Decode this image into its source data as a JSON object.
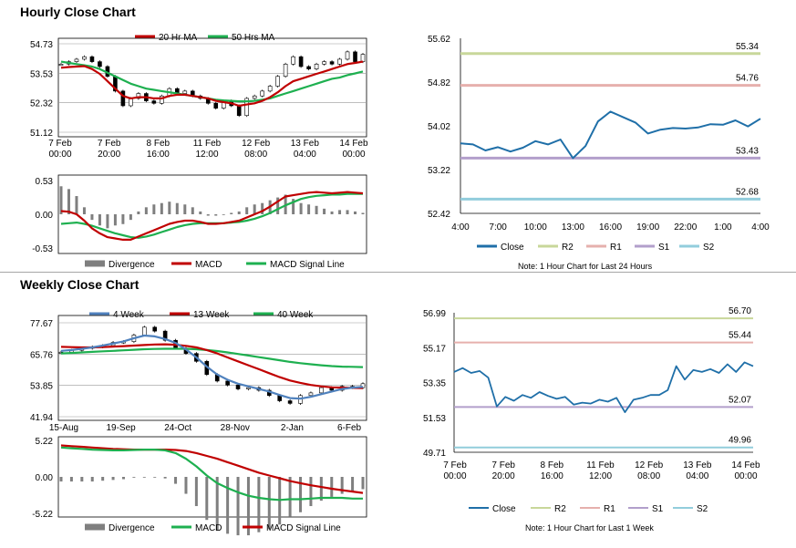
{
  "hourly_title": "Hourly Close Chart",
  "weekly_title": "Weekly Close Chart",
  "colors": {
    "ma20": "#c00000",
    "ma50": "#1eb050",
    "ma4": "#4f81bd",
    "ma13": "#c00000",
    "ma40": "#1eb050",
    "close": "#1f6fa8",
    "r2": "#c8d79a",
    "r1": "#e6b0ad",
    "s1": "#b29fcb",
    "s2": "#92cddc",
    "macd": "#c00000",
    "signal": "#1eb050",
    "divergence": "#7f7f7f"
  },
  "chart_data": [
    {
      "id": "hourly-candles",
      "type": "line",
      "legend": [
        "20 Hr MA",
        "50 Hrs MA"
      ],
      "y_ticks": [
        "54.73",
        "53.53",
        "52.32",
        "51.12"
      ],
      "ylim": [
        51.12,
        54.73
      ],
      "x_ticks": [
        "7 Feb\n00:00",
        "7 Feb\n20:00",
        "8 Feb\n16:00",
        "11 Feb\n12:00",
        "12 Feb\n08:00",
        "13 Feb\n04:00",
        "14 Feb\n00:00"
      ],
      "candles": [
        53.9,
        54.0,
        54.1,
        54.2,
        54.0,
        53.8,
        53.4,
        52.8,
        52.2,
        52.5,
        52.7,
        52.4,
        52.3,
        52.6,
        52.9,
        52.7,
        52.8,
        52.6,
        52.5,
        52.3,
        52.1,
        52.4,
        52.2,
        51.8,
        52.5,
        52.6,
        52.8,
        53.0,
        53.4,
        53.9,
        54.2,
        53.8,
        53.7,
        53.9,
        54.0,
        53.9,
        54.1,
        54.4,
        54.0,
        54.3
      ],
      "series": [
        {
          "name": "20 Hr MA",
          "values": [
            53.75,
            53.78,
            53.8,
            53.82,
            53.7,
            53.5,
            53.2,
            52.9,
            52.6,
            52.5,
            52.55,
            52.55,
            52.5,
            52.5,
            52.6,
            52.65,
            52.65,
            52.6,
            52.55,
            52.5,
            52.4,
            52.35,
            52.3,
            52.2,
            52.25,
            52.3,
            52.4,
            52.55,
            52.75,
            53.0,
            53.2,
            53.3,
            53.4,
            53.5,
            53.6,
            53.7,
            53.8,
            53.9,
            53.95,
            54.0
          ]
        },
        {
          "name": "50 Hrs MA",
          "values": [
            54.0,
            53.95,
            53.9,
            53.85,
            53.8,
            53.7,
            53.55,
            53.4,
            53.25,
            53.1,
            53.0,
            52.9,
            52.85,
            52.8,
            52.75,
            52.7,
            52.65,
            52.6,
            52.55,
            52.5,
            52.45,
            52.42,
            52.4,
            52.38,
            52.38,
            52.4,
            52.45,
            52.5,
            52.6,
            52.7,
            52.8,
            52.9,
            53.0,
            53.1,
            53.2,
            53.3,
            53.35,
            53.45,
            53.52,
            53.6
          ]
        }
      ]
    },
    {
      "id": "hourly-macd",
      "type": "line",
      "legend": [
        "Divergence",
        "MACD",
        "MACD Signal Line"
      ],
      "y_ticks": [
        "0.53",
        "0.00",
        "-0.53"
      ],
      "ylim": [
        -0.53,
        0.53
      ],
      "series": [
        {
          "name": "MACD",
          "values": [
            0.05,
            0.04,
            0.0,
            -0.1,
            -0.22,
            -0.3,
            -0.36,
            -0.38,
            -0.4,
            -0.4,
            -0.35,
            -0.3,
            -0.25,
            -0.2,
            -0.15,
            -0.12,
            -0.1,
            -0.1,
            -0.12,
            -0.15,
            -0.15,
            -0.14,
            -0.12,
            -0.1,
            -0.05,
            0.0,
            0.05,
            0.12,
            0.2,
            0.28,
            0.3,
            0.32,
            0.34,
            0.35,
            0.34,
            0.33,
            0.34,
            0.35,
            0.34,
            0.33
          ]
        },
        {
          "name": "MACD Signal Line",
          "values": [
            -0.15,
            -0.14,
            -0.13,
            -0.15,
            -0.18,
            -0.22,
            -0.26,
            -0.3,
            -0.33,
            -0.36,
            -0.37,
            -0.35,
            -0.32,
            -0.28,
            -0.24,
            -0.2,
            -0.17,
            -0.15,
            -0.14,
            -0.14,
            -0.14,
            -0.14,
            -0.13,
            -0.12,
            -0.1,
            -0.07,
            -0.03,
            0.02,
            0.08,
            0.14,
            0.19,
            0.24,
            0.27,
            0.29,
            0.3,
            0.31,
            0.31,
            0.32,
            0.32,
            0.32
          ]
        }
      ]
    },
    {
      "id": "hourly-pivot",
      "type": "line",
      "y_ticks": [
        "55.62",
        "54.82",
        "54.02",
        "53.22",
        "52.42"
      ],
      "ylim": [
        52.42,
        55.62
      ],
      "x_ticks": [
        "4:00",
        "7:00",
        "10:00",
        "13:00",
        "16:00",
        "19:00",
        "22:00",
        "1:00",
        "4:00"
      ],
      "levels": [
        {
          "name": "R2",
          "value": 55.34,
          "label": "55.34"
        },
        {
          "name": "R1",
          "value": 54.76,
          "label": "54.76"
        },
        {
          "name": "S1",
          "value": 53.43,
          "label": "53.43"
        },
        {
          "name": "S2",
          "value": 52.68,
          "label": "52.68"
        }
      ],
      "series": [
        {
          "name": "Close",
          "values": [
            53.7,
            53.68,
            53.57,
            53.63,
            53.55,
            53.62,
            53.74,
            53.68,
            53.77,
            53.43,
            53.65,
            54.1,
            54.28,
            54.18,
            54.08,
            53.88,
            53.95,
            53.98,
            53.97,
            53.99,
            54.05,
            54.04,
            54.12,
            54.01,
            54.15
          ]
        }
      ],
      "legend": [
        "Close",
        "R2",
        "R1",
        "S1",
        "S2"
      ],
      "note": "Note: 1 Hour Chart for Last 24 Hours"
    },
    {
      "id": "weekly-candles",
      "type": "line",
      "legend": [
        "4 Week",
        "13 Week",
        "40 Week"
      ],
      "y_ticks": [
        "77.67",
        "65.76",
        "53.85",
        "41.94"
      ],
      "ylim": [
        41.94,
        77.67
      ],
      "x_ticks": [
        "15-Aug",
        "19-Sep",
        "24-Oct",
        "28-Nov",
        "2-Jan",
        "6-Feb"
      ],
      "candles": [
        66.5,
        67.2,
        68.0,
        68.5,
        69.0,
        70.2,
        70.5,
        73.0,
        76.0,
        74.5,
        71.0,
        68.0,
        66.0,
        63.0,
        58.0,
        55.5,
        54.0,
        52.5,
        53.0,
        52.0,
        50.0,
        48.0,
        47.0,
        50.0,
        51.0,
        53.0,
        52.0,
        53.5,
        53.0,
        54.5
      ],
      "series": [
        {
          "name": "4 Week",
          "values": [
            67.0,
            67.3,
            67.8,
            68.3,
            69.0,
            69.8,
            70.6,
            71.8,
            72.8,
            72.5,
            71.5,
            70.0,
            67.5,
            64.5,
            61.0,
            58.0,
            56.0,
            54.5,
            53.5,
            52.5,
            51.5,
            50.2,
            49.0,
            48.8,
            49.5,
            50.5,
            51.5,
            52.5,
            53.0,
            53.3
          ]
        },
        {
          "name": "13 Week",
          "values": [
            68.5,
            68.4,
            68.3,
            68.3,
            68.4,
            68.6,
            68.8,
            69.0,
            69.2,
            69.4,
            69.5,
            69.3,
            68.9,
            68.3,
            67.3,
            66.0,
            64.5,
            63.0,
            61.5,
            60.0,
            58.5,
            57.0,
            55.7,
            54.8,
            54.0,
            53.5,
            53.1,
            53.0,
            52.9,
            52.8
          ]
        },
        {
          "name": "40 Week",
          "values": [
            66.0,
            66.2,
            66.4,
            66.6,
            66.8,
            67.0,
            67.2,
            67.4,
            67.6,
            67.7,
            67.8,
            67.8,
            67.8,
            67.6,
            67.3,
            66.9,
            66.4,
            65.8,
            65.2,
            64.6,
            64.0,
            63.4,
            62.8,
            62.3,
            61.9,
            61.5,
            61.2,
            61.0,
            60.9,
            60.8
          ]
        }
      ]
    },
    {
      "id": "weekly-macd",
      "type": "line",
      "legend": [
        "Divergence",
        "MACD",
        "MACD Signal Line"
      ],
      "y_ticks": [
        "5.22",
        "0.00",
        "-5.22"
      ],
      "ylim": [
        -5.22,
        5.22
      ],
      "series": [
        {
          "name": "MACD",
          "values": [
            4.2,
            4.1,
            4.0,
            3.9,
            3.85,
            3.8,
            3.8,
            3.85,
            3.9,
            3.9,
            3.8,
            3.4,
            2.6,
            1.5,
            0.2,
            -0.9,
            -1.6,
            -2.2,
            -2.7,
            -3.0,
            -3.2,
            -3.3,
            -3.2,
            -3.2,
            -3.1,
            -3.0,
            -3.0,
            -3.0,
            -3.1,
            -3.1
          ]
        },
        {
          "name": "MACD Signal Line",
          "values": [
            4.5,
            4.4,
            4.3,
            4.2,
            4.1,
            4.0,
            3.95,
            3.9,
            3.9,
            3.9,
            3.9,
            3.85,
            3.7,
            3.4,
            3.0,
            2.6,
            2.1,
            1.6,
            1.1,
            0.6,
            0.2,
            -0.2,
            -0.6,
            -0.9,
            -1.2,
            -1.45,
            -1.7,
            -1.9,
            -2.1,
            -2.3
          ]
        }
      ]
    },
    {
      "id": "weekly-pivot",
      "type": "line",
      "y_ticks": [
        "56.99",
        "55.17",
        "53.35",
        "51.53",
        "49.71"
      ],
      "ylim": [
        49.71,
        56.99
      ],
      "x_ticks": [
        "7 Feb\n00:00",
        "7 Feb\n20:00",
        "8 Feb\n16:00",
        "11 Feb\n12:00",
        "12 Feb\n08:00",
        "13 Feb\n04:00",
        "14 Feb\n00:00"
      ],
      "levels": [
        {
          "name": "R2",
          "value": 56.7,
          "label": "56.70"
        },
        {
          "name": "R1",
          "value": 55.44,
          "label": "55.44"
        },
        {
          "name": "S1",
          "value": 52.07,
          "label": "52.07"
        },
        {
          "name": "S2",
          "value": 49.96,
          "label": "49.96"
        }
      ],
      "series": [
        {
          "name": "Close",
          "values": [
            53.9,
            54.1,
            53.85,
            53.95,
            53.6,
            52.1,
            52.6,
            52.4,
            52.7,
            52.55,
            52.85,
            52.65,
            52.5,
            52.6,
            52.2,
            52.3,
            52.25,
            52.45,
            52.35,
            52.55,
            51.8,
            52.45,
            52.55,
            52.7,
            52.7,
            52.95,
            54.2,
            53.5,
            54.0,
            53.9,
            54.05,
            53.85,
            54.3,
            53.9,
            54.4,
            54.2
          ]
        }
      ],
      "legend": [
        "Close",
        "R2",
        "R1",
        "S1",
        "S2"
      ],
      "note": "Note: 1 Hour Chart for Last 1 Week"
    }
  ]
}
